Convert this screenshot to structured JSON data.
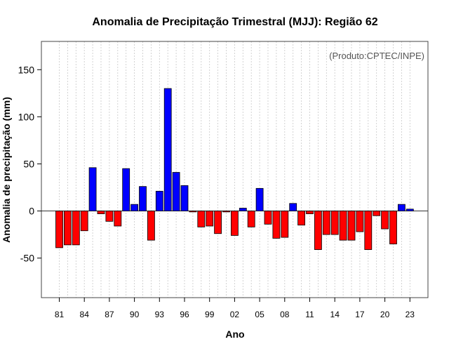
{
  "chart_data": {
    "type": "bar",
    "title": "Anomalia de Precipitação Trimestral (MJJ): Região 62",
    "xlabel": "Ano",
    "ylabel": "Anomalia de precipitação (mm)",
    "credit": "(Produto:CPTEC/INPE)",
    "ylim": [
      -92,
      180
    ],
    "yticks": [
      -50,
      0,
      50,
      100,
      150
    ],
    "years": [
      1981,
      1982,
      1983,
      1984,
      1985,
      1986,
      1987,
      1988,
      1989,
      1990,
      1991,
      1992,
      1993,
      1994,
      1995,
      1996,
      1997,
      1998,
      1999,
      2000,
      2001,
      2002,
      2003,
      2004,
      2005,
      2006,
      2007,
      2008,
      2009,
      2010,
      2011,
      2012,
      2013,
      2014,
      2015,
      2016,
      2017,
      2018,
      2019,
      2020,
      2021,
      2022,
      2023
    ],
    "values": [
      -39,
      -36,
      -36,
      -21,
      46,
      -3,
      -11,
      -16,
      45,
      7,
      26,
      -31,
      21,
      130,
      41,
      27,
      -1,
      -17,
      -16,
      -24,
      -1,
      -26,
      3,
      -17,
      24,
      -14,
      -29,
      -28,
      8,
      -15,
      -3,
      -41,
      -25,
      -25,
      -31,
      -31,
      -22,
      -41,
      -5,
      -19,
      -35,
      7,
      2
    ],
    "xtick_labels": [
      "81",
      "84",
      "87",
      "90",
      "93",
      "96",
      "99",
      "02",
      "05",
      "08",
      "11",
      "14",
      "17",
      "20",
      "23"
    ],
    "xtick_years": [
      1981,
      1984,
      1987,
      1990,
      1993,
      1996,
      1999,
      2002,
      2005,
      2008,
      2011,
      2014,
      2017,
      2020,
      2023
    ],
    "positive_color": "#0000ff",
    "negative_color": "#ff0000",
    "grid": true
  }
}
